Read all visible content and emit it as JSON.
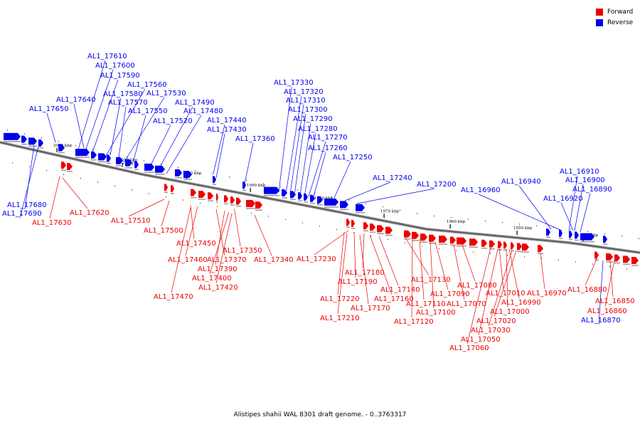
{
  "caption": "Alistipes shahii WAL 8301 draft genome. - 0..3763317",
  "legend": {
    "forward_label": "Forward",
    "reverse_label": "Reverse",
    "forward_color": "#ee0000",
    "reverse_color": "#0000ee"
  },
  "ticks": [
    "2020 kbp",
    "2010 kbp",
    "2000 kbp",
    "1990 kbp",
    "1980 kbp",
    "1970 kbp",
    "1960 kbp",
    "1950 kbp",
    "1940 kbp"
  ],
  "genes_reverse": [
    "AL1_17610",
    "AL1_17600",
    "AL1_17590",
    "AL1_17560",
    "AL1_17580",
    "AL1_17530",
    "AL1_17570",
    "AL1_17640",
    "AL1_17550",
    "AL1_17490",
    "AL1_17650",
    "AL1_17480",
    "AL1_17520",
    "AL1_17440",
    "AL1_17430",
    "AL1_17360",
    "AL1_17330",
    "AL1_17320",
    "AL1_17310",
    "AL1_17300",
    "AL1_17290",
    "AL1_17280",
    "AL1_17270",
    "AL1_17260",
    "AL1_17250",
    "AL1_17240",
    "AL1_17200",
    "AL1_16940",
    "AL1_16960",
    "AL1_16910",
    "AL1_16900",
    "AL1_16890",
    "AL1_16920",
    "AL1_17680",
    "AL1_17690",
    "AL1_16870"
  ],
  "genes_forward": [
    "AL1_17620",
    "AL1_17630",
    "AL1_17510",
    "AL1_17500",
    "AL1_17450",
    "AL1_17460",
    "AL1_17350",
    "AL1_17370",
    "AL1_17340",
    "AL1_17390",
    "AL1_17400",
    "AL1_17420",
    "AL1_17470",
    "AL1_17230",
    "AL1_17180",
    "AL1_17190",
    "AL1_17130",
    "AL1_17140",
    "AL1_17220",
    "AL1_17160",
    "AL1_17170",
    "AL1_17110",
    "AL1_17100",
    "AL1_17210",
    "AL1_17120",
    "AL1_17080",
    "AL1_17090",
    "AL1_17070",
    "AL1_17010",
    "AL1_16990",
    "AL1_17000",
    "AL1_17020",
    "AL1_17030",
    "AL1_17050",
    "AL1_17060",
    "AL1_16970",
    "AL1_16880",
    "AL1_16850",
    "AL1_16860"
  ]
}
